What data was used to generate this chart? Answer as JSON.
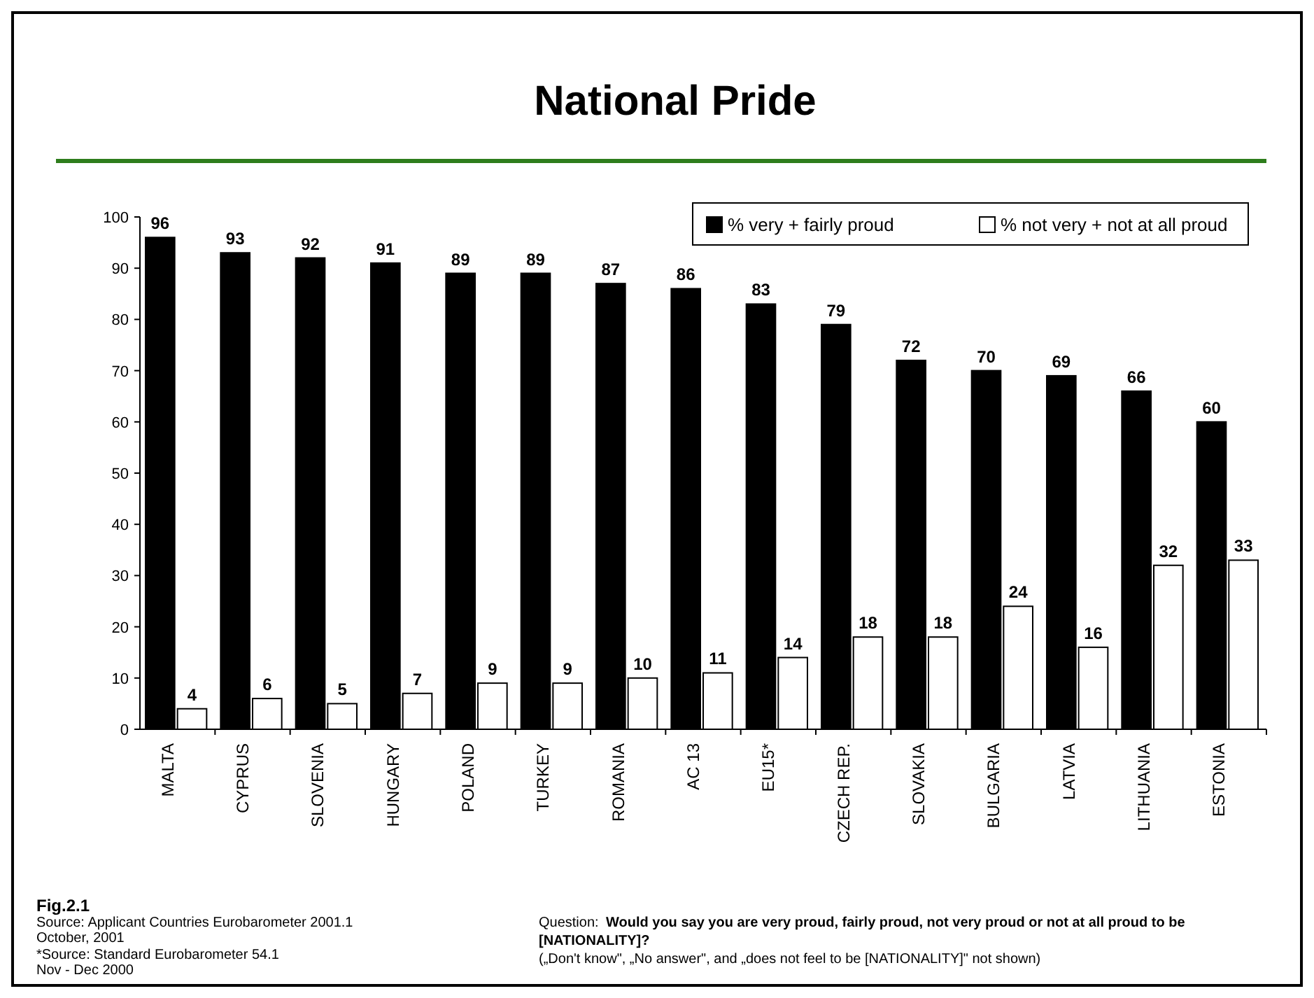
{
  "chart_data": {
    "type": "bar",
    "title": "National Pride",
    "categories": [
      "MALTA",
      "CYPRUS",
      "SLOVENIA",
      "HUNGARY",
      "POLAND",
      "TURKEY",
      "ROMANIA",
      "AC 13",
      "EU15*",
      "CZECH REP.",
      "SLOVAKIA",
      "BULGARIA",
      "LATVIA",
      "LITHUANIA",
      "ESTONIA"
    ],
    "series": [
      {
        "name": "% very + fairly proud",
        "color": "#000000",
        "values": [
          96,
          93,
          92,
          91,
          89,
          89,
          87,
          86,
          83,
          79,
          72,
          70,
          69,
          66,
          60
        ]
      },
      {
        "name": "% not very + not at all proud",
        "color": "#ffffff",
        "values": [
          4,
          6,
          5,
          7,
          9,
          9,
          10,
          11,
          14,
          18,
          18,
          24,
          16,
          32,
          33
        ]
      }
    ],
    "ylim": [
      0,
      100
    ],
    "yticks": [
      0,
      10,
      20,
      30,
      40,
      50,
      60,
      70,
      80,
      90,
      100
    ],
    "data_labels": true,
    "legend": "top right",
    "grid": false,
    "annotations": [
      "Fig.2.1",
      "Source: Applicant Countries Eurobarometer 2001.1",
      "October, 2001",
      "*Source: Standard Eurobarometer 54.1",
      "Nov - Dec 2000",
      "Question:",
      "Would you say you are very proud, fairly proud, not very proud or not at all proud to be [NATIONALITY]?",
      "(„Don't know\", „No answer\", and „does not feel to be [NATIONALITY]\" not shown)"
    ]
  }
}
